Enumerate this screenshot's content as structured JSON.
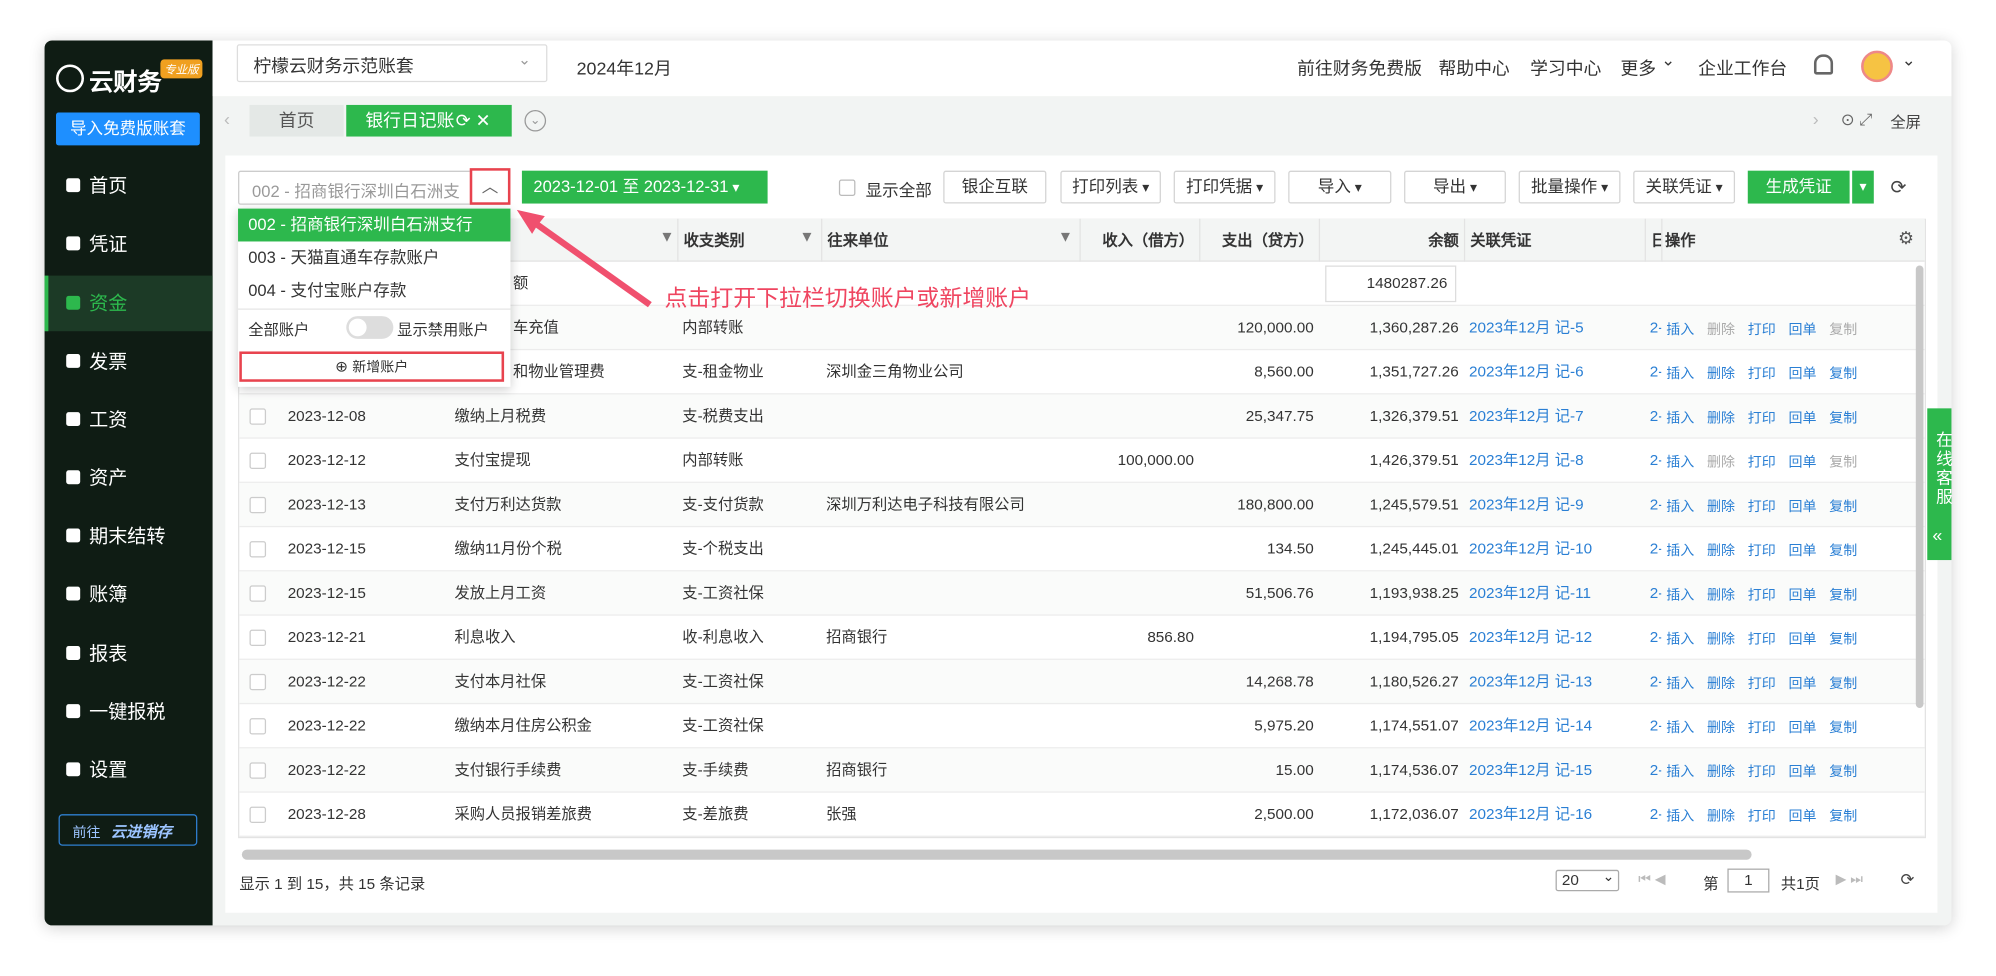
{
  "header": {
    "logo": "云财务",
    "edition": "专业版",
    "import_button": "导入免费版账套",
    "account_set": "柠檬云财务示范账套",
    "period": "2024年12月",
    "links": [
      "前往财务免费版",
      "帮助中心",
      "学习中心",
      "更多",
      "企业工作台"
    ]
  },
  "sidebar": {
    "menu": [
      "首页",
      "凭证",
      "资金",
      "发票",
      "工资",
      "资产",
      "期末结转",
      "账簿",
      "报表",
      "一键报税",
      "设置"
    ],
    "active": 2,
    "promo_prefix": "前往",
    "promo_name": "云进销存"
  },
  "tabs": {
    "items": [
      "首页",
      "银行日记账"
    ],
    "fullscreen": "全屏"
  },
  "toolbar": {
    "account": "002 - 招商银行深圳白石洲支",
    "date_range": "2023-12-01 至 2023-12-31",
    "show_all": "显示全部",
    "buttons": [
      "银企互联",
      "打印列表",
      "打印凭据",
      "导入",
      "导出",
      "批量操作",
      "关联凭证"
    ],
    "generate": "生成凭证"
  },
  "dropdown": {
    "options": [
      "002 - 招商银行深圳白石洲支行",
      "003 - 天猫直通车存款账户",
      "004 - 支付宝账户存款"
    ],
    "selected": 0,
    "all_accounts": "全部账户",
    "show_disabled": "显示禁用账户",
    "add": "新增账户"
  },
  "annotation": "点击打开下拉栏切换账户或新增账户",
  "table": {
    "headers": {
      "category": "收支类别",
      "party": "往来单位",
      "income": "收入（借方）",
      "expense": "支出（贷方）",
      "balance": "余额",
      "voucher": "关联凭证",
      "day": "日",
      "ops": "操作"
    },
    "actions": [
      "插入",
      "删除",
      "打印",
      "回单",
      "复制"
    ],
    "rows": [
      {
        "summary": "额",
        "opening_balance": "1480287.26"
      },
      {
        "summary": "车充值",
        "category": "内部转账",
        "expense": "120,000.00",
        "balance": "1,360,287.26",
        "voucher": "2023年12月 记-5",
        "day": "2-",
        "disabled": [
          1,
          4
        ]
      },
      {
        "summary": "和物业管理费",
        "category": "支-租金物业",
        "party": "深圳金三角物业公司",
        "expense": "8,560.00",
        "balance": "1,351,727.26",
        "voucher": "2023年12月 记-6",
        "day": "2-"
      },
      {
        "date": "2023-12-08",
        "summary": "缴纳上月税费",
        "category": "支-税费支出",
        "expense": "25,347.75",
        "balance": "1,326,379.51",
        "voucher": "2023年12月 记-7",
        "day": "2-"
      },
      {
        "date": "2023-12-12",
        "summary": "支付宝提现",
        "category": "内部转账",
        "income": "100,000.00",
        "balance": "1,426,379.51",
        "voucher": "2023年12月 记-8",
        "day": "2-",
        "disabled": [
          1,
          4
        ]
      },
      {
        "date": "2023-12-13",
        "summary": "支付万利达货款",
        "category": "支-支付货款",
        "party": "深圳万利达电子科技有限公司",
        "expense": "180,800.00",
        "balance": "1,245,579.51",
        "voucher": "2023年12月 记-9",
        "day": "2-"
      },
      {
        "date": "2023-12-15",
        "summary": "缴纳11月份个税",
        "category": "支-个税支出",
        "expense": "134.50",
        "balance": "1,245,445.01",
        "voucher": "2023年12月 记-10",
        "day": "2-"
      },
      {
        "date": "2023-12-15",
        "summary": "发放上月工资",
        "category": "支-工资社保",
        "expense": "51,506.76",
        "balance": "1,193,938.25",
        "voucher": "2023年12月 记-11",
        "day": "2-"
      },
      {
        "date": "2023-12-21",
        "summary": "利息收入",
        "category": "收-利息收入",
        "party": "招商银行",
        "income": "856.80",
        "balance": "1,194,795.05",
        "voucher": "2023年12月 记-12",
        "day": "2-"
      },
      {
        "date": "2023-12-22",
        "summary": "支付本月社保",
        "category": "支-工资社保",
        "expense": "14,268.78",
        "balance": "1,180,526.27",
        "voucher": "2023年12月 记-13",
        "day": "2-"
      },
      {
        "date": "2023-12-22",
        "summary": "缴纳本月住房公积金",
        "category": "支-工资社保",
        "expense": "5,975.20",
        "balance": "1,174,551.07",
        "voucher": "2023年12月 记-14",
        "day": "2-"
      },
      {
        "date": "2023-12-22",
        "summary": "支付银行手续费",
        "category": "支-手续费",
        "party": "招商银行",
        "expense": "15.00",
        "balance": "1,174,536.07",
        "voucher": "2023年12月 记-15",
        "day": "2-"
      },
      {
        "date": "2023-12-28",
        "summary": "采购人员报销差旅费",
        "category": "支-差旅费",
        "party": "张强",
        "expense": "2,500.00",
        "balance": "1,172,036.07",
        "voucher": "2023年12月 记-16",
        "day": "2-"
      }
    ]
  },
  "footer": {
    "summary": "显示 1 到 15，共 15 条记录",
    "page_size": 20,
    "page_label": "第",
    "page": 1,
    "total_pages": "共1页"
  },
  "service": "在线客服"
}
